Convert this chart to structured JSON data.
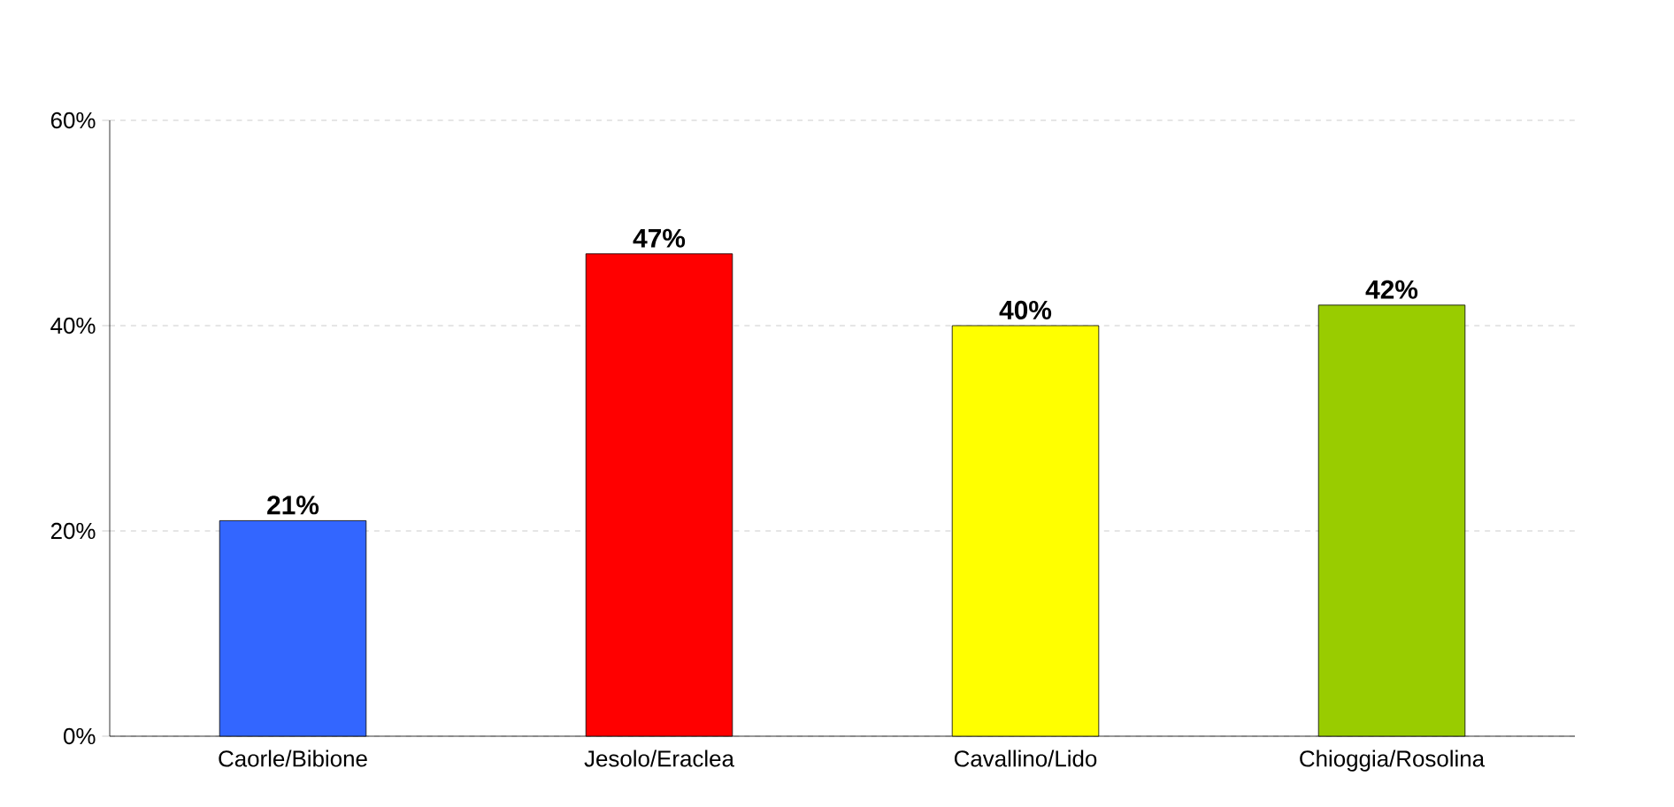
{
  "chart_data": {
    "type": "bar",
    "categories": [
      "Caorle/Bibione",
      "Jesolo/Eraclea",
      "Cavallino/Lido",
      "Chioggia/Rosolina"
    ],
    "values": [
      21,
      47,
      40,
      42
    ],
    "colors": [
      "#3366ff",
      "#ff0000",
      "#ffff00",
      "#99cc00"
    ],
    "value_labels": [
      "21%",
      "47%",
      "40%",
      "42%"
    ],
    "ylim": [
      0,
      60
    ],
    "yticks": [
      {
        "value": 0,
        "label": "0%"
      },
      {
        "value": 20,
        "label": "20%"
      },
      {
        "value": 40,
        "label": "40%"
      },
      {
        "value": 60,
        "label": "60%"
      }
    ],
    "grid": "y"
  }
}
